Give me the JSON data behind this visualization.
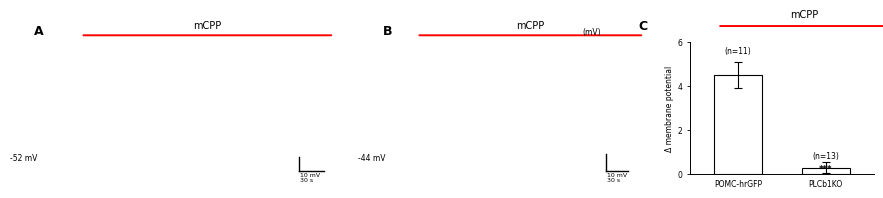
{
  "panel_A_label": "A",
  "panel_B_label": "B",
  "panel_C_label": "C",
  "mcpp_label": "mCPP",
  "baseline_A": "-52 mV",
  "baseline_B": "-44 mV",
  "scale_bar_mv": "10 mV",
  "scale_bar_s": "30 s",
  "bar_categories": [
    "POMC-hrGFP",
    "PLCb1KO"
  ],
  "bar_values": [
    4.5,
    0.3
  ],
  "bar_errors": [
    0.6,
    0.25
  ],
  "bar_colors": [
    "white",
    "white"
  ],
  "bar_edge_colors": [
    "black",
    "black"
  ],
  "n_labels": [
    "(n=11)",
    "(n=13)"
  ],
  "significance": "***",
  "ylabel": "Δ membrane potential",
  "ylabel_units": "(mV)",
  "ylim": [
    0,
    6
  ],
  "yticks": [
    0,
    2,
    4,
    6
  ],
  "red_line_color": "#ff0000",
  "background_color": "#ffffff",
  "trace_bg": "#000000",
  "trace_color": "#ffffff",
  "dotted_line_color": "#888888"
}
